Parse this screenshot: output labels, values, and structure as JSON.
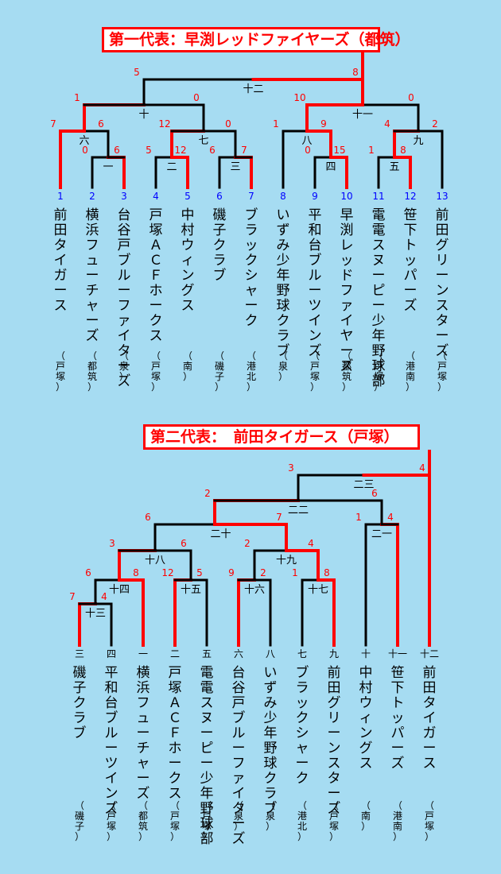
{
  "bracket1": {
    "title": "第一代表：早渕レッドファイヤーズ（都筑）",
    "teams": [
      {
        "num": "1",
        "name": "前田タイガース",
        "area": "（戸塚）"
      },
      {
        "num": "2",
        "name": "横浜フューチャーズ",
        "area": "（都筑）"
      },
      {
        "num": "3",
        "name": "台谷戸ブルーファイターズ",
        "area": "（泉）"
      },
      {
        "num": "4",
        "name": "戸塚ＡＣＦホークス",
        "area": "（戸塚）"
      },
      {
        "num": "5",
        "name": "中村ウィングス",
        "area": "（南）"
      },
      {
        "num": "6",
        "name": "磯子クラブ",
        "area": "（磯子）"
      },
      {
        "num": "7",
        "name": "ブラックシャーク",
        "area": "（港北）"
      },
      {
        "num": "8",
        "name": "いずみ少年野球クラブ",
        "area": "（泉）"
      },
      {
        "num": "9",
        "name": "平和台ブルーツインズ",
        "area": "（戸塚）"
      },
      {
        "num": "10",
        "name": "早渕レッドファイヤーズ",
        "area": "（都筑）"
      },
      {
        "num": "11",
        "name": "電電スヌーピー少年野球部",
        "area": "（戸塚）"
      },
      {
        "num": "12",
        "name": "笹下トッパーズ",
        "area": "（港南）"
      },
      {
        "num": "13",
        "name": "前田グリーンスターズ",
        "area": "（戸塚）"
      }
    ],
    "games": [
      {
        "id": "一",
        "top": "0",
        "bottom": "6"
      },
      {
        "id": "二",
        "top": "5",
        "bottom": "12"
      },
      {
        "id": "三",
        "top": "6",
        "bottom": "7"
      },
      {
        "id": "四",
        "top": "0",
        "bottom": "15"
      },
      {
        "id": "五",
        "top": "1",
        "bottom": "8"
      },
      {
        "id": "六",
        "top": "7",
        "bottom": "6"
      },
      {
        "id": "七",
        "top": "12",
        "bottom": "0"
      },
      {
        "id": "八",
        "top": "1",
        "bottom": "9"
      },
      {
        "id": "九",
        "top": "4",
        "bottom": "2"
      },
      {
        "id": "十",
        "top": "1",
        "bottom": "0"
      },
      {
        "id": "十一",
        "top": "10",
        "bottom": "0"
      },
      {
        "id": "十二",
        "top": "5",
        "bottom": "8"
      }
    ]
  },
  "bracket2": {
    "title": "第二代表：　前田タイガース（戸塚）",
    "teams": [
      {
        "num": "三",
        "name": "磯子クラブ",
        "area": "（磯子）"
      },
      {
        "num": "四",
        "name": "平和台ブルーツインズ",
        "area": "（戸塚）"
      },
      {
        "num": "一",
        "name": "横浜フューチャーズ",
        "area": "（都筑）"
      },
      {
        "num": "二",
        "name": "戸塚ＡＣＦホークス",
        "area": "（戸塚）"
      },
      {
        "num": "五",
        "name": "電電スヌーピー少年野球部",
        "area": "（戸塚）"
      },
      {
        "num": "六",
        "name": "台谷戸ブルーファイターズ",
        "area": "（泉）"
      },
      {
        "num": "八",
        "name": "いずみ少年野球クラブ",
        "area": "（泉）"
      },
      {
        "num": "七",
        "name": "ブラックシャーク",
        "area": "（港北）"
      },
      {
        "num": "九",
        "name": "前田グリーンスターズ",
        "area": "（戸塚）"
      },
      {
        "num": "十",
        "name": "中村ウィングス",
        "area": "（南）"
      },
      {
        "num": "十一",
        "name": "笹下トッパーズ",
        "area": "（港南）"
      },
      {
        "num": "十二",
        "name": "前田タイガース",
        "area": "（戸塚）"
      }
    ],
    "games": [
      {
        "id": "十三",
        "top": "7",
        "bottom": "4"
      },
      {
        "id": "十四",
        "top": "6",
        "bottom": "8"
      },
      {
        "id": "十五",
        "top": "12",
        "bottom": "5"
      },
      {
        "id": "十六",
        "top": "9",
        "bottom": "2"
      },
      {
        "id": "十七",
        "top": "1",
        "bottom": "8"
      },
      {
        "id": "十八",
        "top": "3",
        "bottom": "6"
      },
      {
        "id": "十九",
        "top": "2",
        "bottom": "4"
      },
      {
        "id": "二十",
        "top": "6",
        "bottom": "7"
      },
      {
        "id": "二一",
        "top": "1",
        "bottom": "4"
      },
      {
        "id": "二二",
        "top": "2",
        "bottom": "6"
      },
      {
        "id": "二三",
        "top": "3",
        "bottom": "4"
      }
    ]
  },
  "colors": {
    "background": "#a6dcf2",
    "winner_line": "#ff0000",
    "loser_line": "#000000",
    "score": "#ff0000",
    "seed_number": "#0000ff",
    "title_border": "#ff0000"
  }
}
